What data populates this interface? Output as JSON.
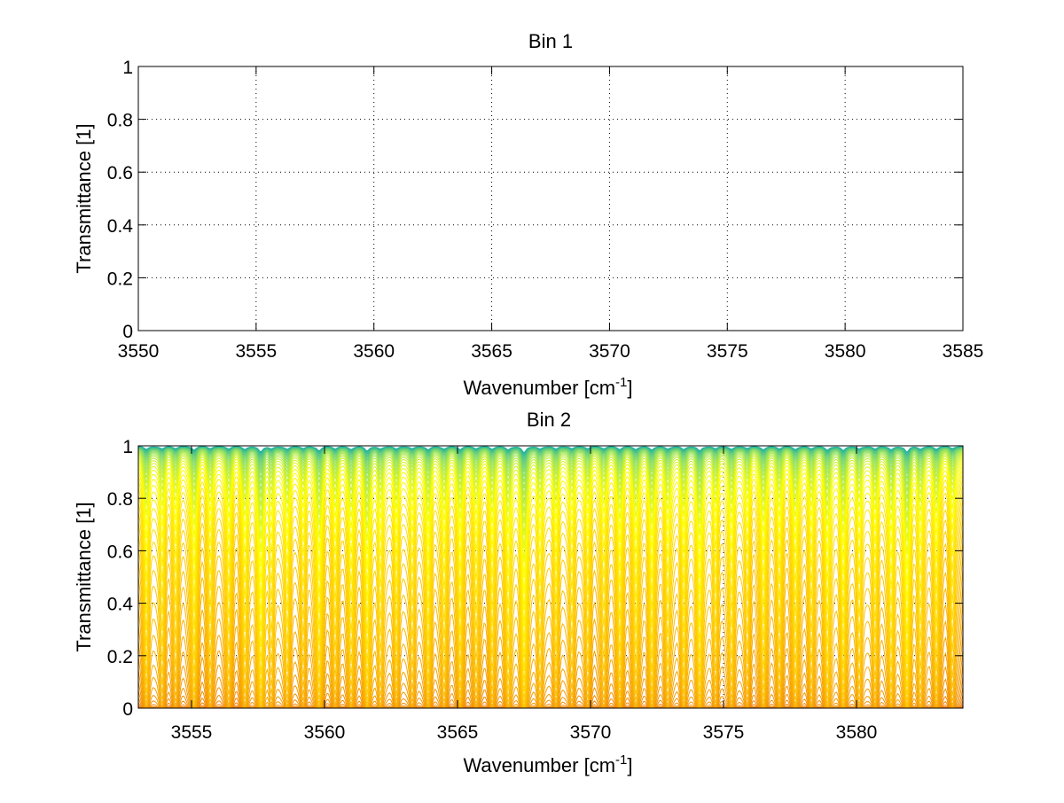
{
  "chart_data": [
    {
      "type": "line",
      "title": "Bin 1",
      "xlabel": "Wavenumber [cm",
      "xlabel_sup": "-1",
      "xlabel_end": "]",
      "ylabel": "Transmittance [1]",
      "xlim": [
        3550,
        3585
      ],
      "ylim": [
        0,
        1
      ],
      "grid": true,
      "xticks": [
        3550,
        3555,
        3560,
        3565,
        3570,
        3575,
        3580,
        3585
      ],
      "yticks": [
        0,
        0.2,
        0.4,
        0.6,
        0.8,
        1
      ],
      "ytick_labels": [
        "0",
        "0.2",
        "0.4",
        "0.6",
        "0.8",
        "1"
      ],
      "series": []
    },
    {
      "type": "line",
      "title": "Bin 2",
      "xlabel": "Wavenumber [cm",
      "xlabel_sup": "-1",
      "xlabel_end": "]",
      "ylabel": "Transmittance [1]",
      "xlim": [
        3553,
        3584
      ],
      "ylim": [
        0,
        1
      ],
      "grid": true,
      "xticks": [
        3555,
        3560,
        3565,
        3570,
        3575,
        3580
      ],
      "yticks": [
        0,
        0.2,
        0.4,
        0.6,
        0.8,
        1
      ],
      "ytick_labels": [
        "0",
        "0.2",
        "0.4",
        "0.6",
        "0.8",
        "1"
      ],
      "series_family": {
        "count": 60,
        "colormap": "red-orange-yellow-green",
        "color_stops": [
          "#d90000",
          "#e85a00",
          "#f29000",
          "#ffc800",
          "#ffff00",
          "#90e060",
          "#20b0a0"
        ],
        "line_centers": [
          3553.3,
          3553.9,
          3554.4,
          3555.1,
          3555.7,
          3556.4,
          3557.0,
          3557.6,
          3558.0,
          3558.6,
          3559.2,
          3559.8,
          3560.4,
          3561.0,
          3561.6,
          3562.1,
          3562.7,
          3563.3,
          3563.9,
          3564.5,
          3565.1,
          3565.7,
          3566.3,
          3566.9,
          3567.5,
          3568.1,
          3568.7,
          3569.3,
          3569.9,
          3570.5,
          3571.1,
          3571.7,
          3572.3,
          3572.9,
          3573.5,
          3574.1,
          3574.7,
          3575.3,
          3575.9,
          3576.5,
          3577.1,
          3577.7,
          3578.3,
          3578.9,
          3579.5,
          3580.1,
          3580.7,
          3581.3,
          3581.9,
          3582.4,
          3583.0,
          3583.6
        ],
        "line_strengths": [
          0.9,
          0.7,
          0.6,
          1.0,
          0.6,
          0.7,
          0.8,
          1.5,
          0.7,
          0.8,
          0.6,
          1.2,
          0.7,
          0.8,
          1.3,
          0.7,
          0.8,
          0.6,
          1.0,
          0.7,
          0.9,
          0.6,
          0.8,
          0.9,
          1.8,
          0.7,
          0.8,
          0.6,
          0.7,
          0.6,
          0.9,
          0.8,
          1.0,
          0.7,
          0.9,
          1.2,
          0.7,
          0.8,
          0.6,
          0.9,
          0.7,
          0.8,
          0.7,
          1.0,
          1.2,
          0.7,
          0.8,
          0.9,
          1.6,
          0.7,
          0.8,
          0.6
        ]
      }
    }
  ]
}
